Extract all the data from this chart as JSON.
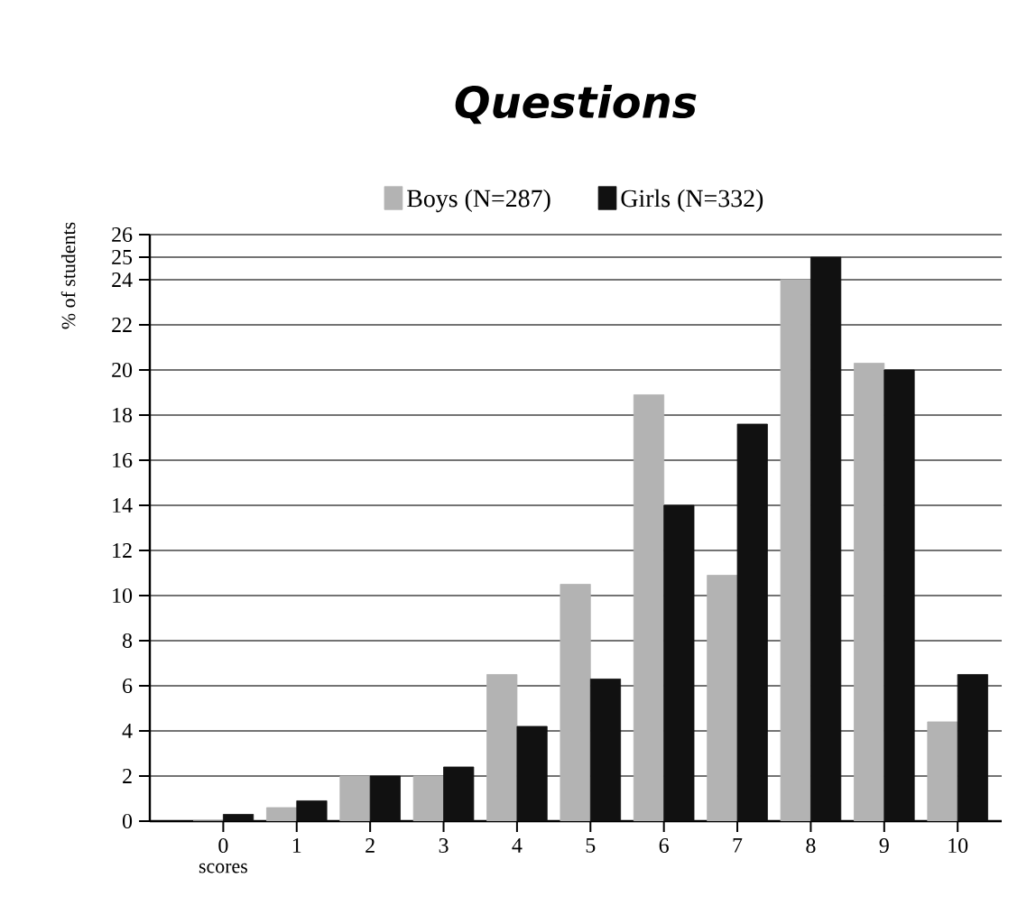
{
  "chart_data": {
    "type": "bar",
    "title": "Questions",
    "xlabel": "scores",
    "ylabel": "% of students",
    "categories": [
      "0",
      "1",
      "2",
      "3",
      "4",
      "5",
      "6",
      "7",
      "8",
      "9",
      "10"
    ],
    "series": [
      {
        "name": "Boys (N=287)",
        "color": "#b3b3b3",
        "values": [
          0,
          0.6,
          2.0,
          2.0,
          6.5,
          10.5,
          18.9,
          10.9,
          24.0,
          20.3,
          4.4
        ]
      },
      {
        "name": "Girls (N=332)",
        "color": "#111111",
        "values": [
          0.3,
          0.9,
          2.0,
          2.4,
          4.2,
          6.3,
          14.0,
          17.6,
          25,
          20.0,
          6.5
        ]
      }
    ],
    "ylim": [
      0,
      26
    ],
    "yticks": [
      0,
      2,
      4,
      6,
      8,
      10,
      12,
      14,
      16,
      18,
      20,
      22,
      24,
      25,
      26
    ],
    "grid": "y",
    "legend": "top"
  }
}
